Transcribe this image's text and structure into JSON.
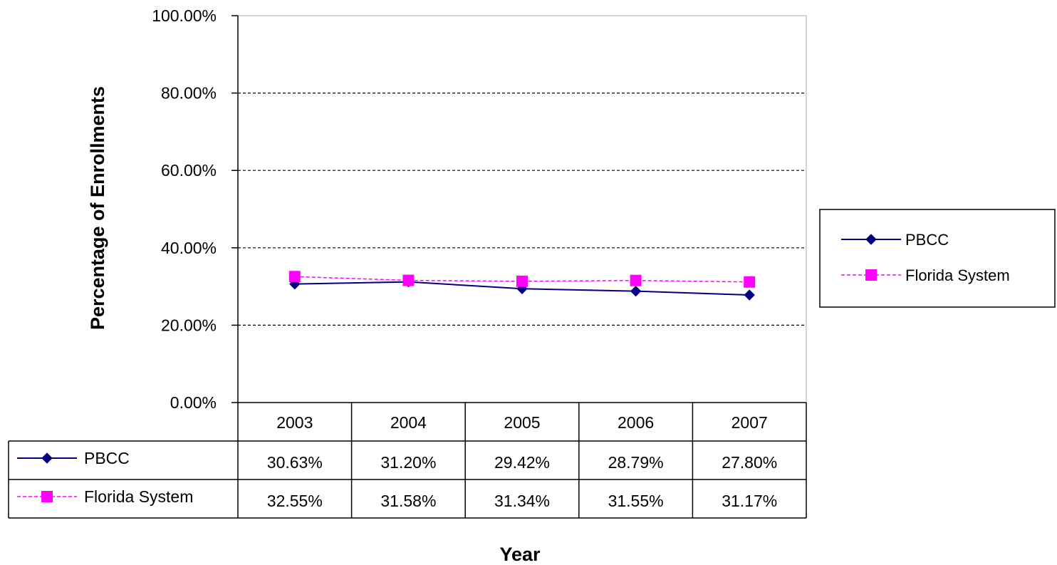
{
  "chart_data": {
    "type": "line",
    "categories": [
      "2003",
      "2004",
      "2005",
      "2006",
      "2007"
    ],
    "series": [
      {
        "name": "PBCC",
        "values": [
          30.63,
          31.2,
          29.42,
          28.79,
          27.8
        ],
        "labels": [
          "30.63%",
          "31.20%",
          "29.42%",
          "28.79%",
          "27.80%"
        ],
        "color": "#000080",
        "marker": "diamond",
        "line_style": "solid"
      },
      {
        "name": "Florida System",
        "values": [
          32.55,
          31.58,
          31.34,
          31.55,
          31.17
        ],
        "labels": [
          "32.55%",
          "31.58%",
          "31.34%",
          "31.55%",
          "31.17%"
        ],
        "color": "#FF00FF",
        "marker": "square",
        "line_style": "dashed"
      }
    ],
    "xlabel": "Year",
    "ylabel": "Percentage of Enrollments",
    "ylim": [
      0,
      100
    ],
    "yticks": [
      0,
      20,
      40,
      60,
      80,
      100
    ],
    "ytick_labels": [
      "0.00%",
      "20.00%",
      "40.00%",
      "60.00%",
      "80.00%",
      "100.00%"
    ],
    "grid": "horizontal dashed",
    "legend_position": "right",
    "data_table": true
  }
}
